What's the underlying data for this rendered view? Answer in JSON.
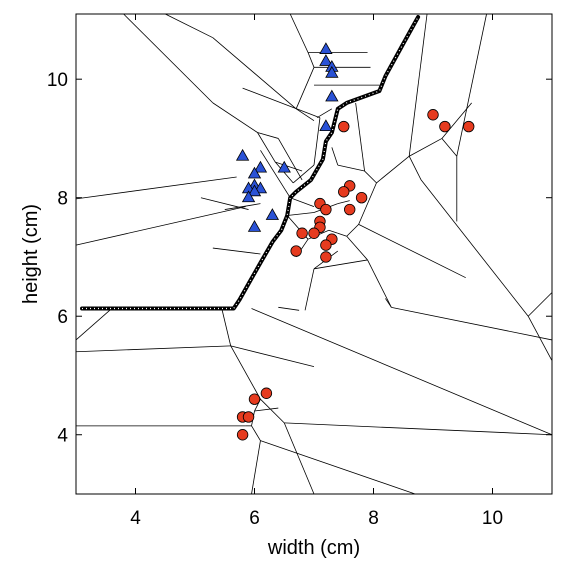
{
  "chart_data": {
    "type": "scatter",
    "xlabel": "width (cm)",
    "ylabel": "height (cm)",
    "xlim": [
      3,
      11
    ],
    "ylim": [
      3,
      11.1
    ],
    "xticks": [
      4,
      6,
      8,
      10
    ],
    "yticks": [
      4,
      6,
      8,
      10
    ],
    "grid": false,
    "series": [
      {
        "marker": "triangle",
        "color": "#2a52d6",
        "points": [
          [
            7.2,
            10.5
          ],
          [
            7.2,
            10.3
          ],
          [
            7.3,
            10.2
          ],
          [
            7.3,
            10.1
          ],
          [
            7.3,
            9.7
          ],
          [
            7.2,
            9.2
          ],
          [
            5.8,
            8.7
          ],
          [
            6.1,
            8.5
          ],
          [
            6.5,
            8.5
          ],
          [
            6.0,
            8.4
          ],
          [
            6.0,
            8.2
          ],
          [
            5.9,
            8.15
          ],
          [
            6.1,
            8.15
          ],
          [
            6.0,
            8.1
          ],
          [
            5.9,
            8.0
          ],
          [
            6.3,
            7.7
          ],
          [
            6.0,
            7.5
          ]
        ]
      },
      {
        "marker": "circle",
        "color": "#e63b1f",
        "points": [
          [
            7.5,
            9.2
          ],
          [
            9.0,
            9.4
          ],
          [
            9.2,
            9.2
          ],
          [
            9.6,
            9.2
          ],
          [
            7.6,
            8.2
          ],
          [
            7.5,
            8.1
          ],
          [
            7.8,
            8.0
          ],
          [
            7.1,
            7.9
          ],
          [
            7.2,
            7.8
          ],
          [
            7.6,
            7.8
          ],
          [
            7.1,
            7.6
          ],
          [
            7.1,
            7.5
          ],
          [
            7.0,
            7.4
          ],
          [
            6.8,
            7.4
          ],
          [
            7.3,
            7.3
          ],
          [
            7.2,
            7.2
          ],
          [
            6.7,
            7.1
          ],
          [
            7.2,
            7.0
          ],
          [
            6.2,
            4.7
          ],
          [
            6.0,
            4.6
          ],
          [
            5.8,
            4.3
          ],
          [
            5.9,
            4.3
          ],
          [
            5.8,
            4.0
          ]
        ]
      }
    ],
    "decision_boundary": [
      [
        3.1,
        6.13
      ],
      [
        5.65,
        6.13
      ],
      [
        5.75,
        6.28
      ],
      [
        5.9,
        6.55
      ],
      [
        6.1,
        6.9
      ],
      [
        6.3,
        7.25
      ],
      [
        6.45,
        7.45
      ],
      [
        6.55,
        7.7
      ],
      [
        6.6,
        8.0
      ],
      [
        6.7,
        8.1
      ],
      [
        6.95,
        8.3
      ],
      [
        7.15,
        8.65
      ],
      [
        7.2,
        8.95
      ],
      [
        7.3,
        9.1
      ],
      [
        7.4,
        9.5
      ],
      [
        7.55,
        9.6
      ],
      [
        8.1,
        9.8
      ],
      [
        8.2,
        10.05
      ],
      [
        8.5,
        10.6
      ],
      [
        8.75,
        11.05
      ]
    ],
    "voronoi_edges": [
      [
        [
          3.0,
          7.98
        ],
        [
          5.7,
          8.35
        ]
      ],
      [
        [
          3.0,
          7.2
        ],
        [
          5.85,
          7.85
        ]
      ],
      [
        [
          3.0,
          4.15
        ],
        [
          5.85,
          4.15
        ]
      ],
      [
        [
          3.0,
          5.6
        ],
        [
          3.6,
          6.13
        ]
      ],
      [
        [
          3.8,
          11.1
        ],
        [
          5.3,
          9.6
        ]
      ],
      [
        [
          5.3,
          9.6
        ],
        [
          6.05,
          9.1
        ]
      ],
      [
        [
          5.1,
          8.0
        ],
        [
          5.9,
          7.8
        ]
      ],
      [
        [
          5.3,
          7.15
        ],
        [
          6.1,
          7.05
        ]
      ],
      [
        [
          5.5,
          7.8
        ],
        [
          6.1,
          7.9
        ]
      ],
      [
        [
          6.05,
          9.1
        ],
        [
          6.35,
          8.6
        ]
      ],
      [
        [
          6.35,
          8.6
        ],
        [
          6.65,
          8.25
        ]
      ],
      [
        [
          6.1,
          8.8
        ],
        [
          6.6,
          8.0
        ]
      ],
      [
        [
          6.35,
          8.6
        ],
        [
          6.8,
          8.45
        ]
      ],
      [
        [
          6.05,
          9.1
        ],
        [
          6.4,
          9.0
        ]
      ],
      [
        [
          6.4,
          9.0
        ],
        [
          6.8,
          8.3
        ]
      ],
      [
        [
          4.5,
          11.1
        ],
        [
          5.3,
          10.7
        ]
      ],
      [
        [
          5.3,
          10.7
        ],
        [
          6.7,
          9.5
        ]
      ],
      [
        [
          6.7,
          9.5
        ],
        [
          7.0,
          9.3
        ]
      ],
      [
        [
          6.6,
          11.1
        ],
        [
          6.9,
          10.45
        ]
      ],
      [
        [
          6.9,
          10.45
        ],
        [
          7.0,
          10.2
        ]
      ],
      [
        [
          7.0,
          10.2
        ],
        [
          6.7,
          9.5
        ]
      ],
      [
        [
          6.9,
          10.45
        ],
        [
          7.9,
          10.45
        ]
      ],
      [
        [
          7.0,
          10.2
        ],
        [
          7.95,
          10.2
        ]
      ],
      [
        [
          7.0,
          9.9
        ],
        [
          8.1,
          9.9
        ]
      ],
      [
        [
          5.8,
          9.85
        ],
        [
          7.1,
          9.35
        ]
      ],
      [
        [
          7.05,
          9.35
        ],
        [
          7.3,
          9.5
        ]
      ],
      [
        [
          7.1,
          9.35
        ],
        [
          7.0,
          8.55
        ]
      ],
      [
        [
          7.0,
          8.55
        ],
        [
          6.65,
          8.25
        ]
      ],
      [
        [
          7.3,
          8.85
        ],
        [
          7.4,
          8.55
        ]
      ],
      [
        [
          7.4,
          8.55
        ],
        [
          7.85,
          8.45
        ]
      ],
      [
        [
          7.85,
          8.45
        ],
        [
          7.7,
          9.6
        ]
      ],
      [
        [
          7.85,
          8.45
        ],
        [
          8.05,
          8.25
        ]
      ],
      [
        [
          8.05,
          8.25
        ],
        [
          8.6,
          8.7
        ]
      ],
      [
        [
          8.6,
          8.7
        ],
        [
          8.9,
          11.1
        ]
      ],
      [
        [
          8.6,
          8.7
        ],
        [
          9.15,
          9.0
        ]
      ],
      [
        [
          9.15,
          9.0
        ],
        [
          9.65,
          9.6
        ]
      ],
      [
        [
          9.15,
          9.0
        ],
        [
          9.4,
          8.7
        ]
      ],
      [
        [
          9.4,
          8.7
        ],
        [
          9.4,
          7.6
        ]
      ],
      [
        [
          9.4,
          8.7
        ],
        [
          9.9,
          11.1
        ]
      ],
      [
        [
          8.6,
          8.7
        ],
        [
          8.8,
          8.3
        ]
      ],
      [
        [
          8.8,
          8.3
        ],
        [
          10.6,
          6.0
        ]
      ],
      [
        [
          10.6,
          6.0
        ],
        [
          11.0,
          5.25
        ]
      ],
      [
        [
          10.6,
          6.0
        ],
        [
          11.0,
          6.4
        ]
      ],
      [
        [
          8.05,
          8.25
        ],
        [
          7.75,
          7.55
        ]
      ],
      [
        [
          7.75,
          7.55
        ],
        [
          7.55,
          7.35
        ]
      ],
      [
        [
          7.55,
          7.35
        ],
        [
          7.4,
          7.4
        ]
      ],
      [
        [
          7.75,
          7.55
        ],
        [
          9.55,
          6.65
        ]
      ],
      [
        [
          7.4,
          7.4
        ],
        [
          7.25,
          7.45
        ]
      ],
      [
        [
          7.55,
          7.35
        ],
        [
          7.9,
          6.95
        ]
      ],
      [
        [
          7.9,
          6.95
        ],
        [
          8.3,
          6.15
        ]
      ],
      [
        [
          8.3,
          6.15
        ],
        [
          11.0,
          5.6
        ]
      ],
      [
        [
          8.3,
          6.15
        ],
        [
          8.2,
          6.3
        ]
      ],
      [
        [
          7.9,
          6.95
        ],
        [
          7.0,
          6.8
        ]
      ],
      [
        [
          7.0,
          6.8
        ],
        [
          6.85,
          6.1
        ]
      ],
      [
        [
          7.0,
          6.8
        ],
        [
          7.4,
          7.1
        ]
      ],
      [
        [
          6.55,
          7.7
        ],
        [
          7.0,
          7.75
        ]
      ],
      [
        [
          7.0,
          7.75
        ],
        [
          7.4,
          7.9
        ]
      ],
      [
        [
          7.4,
          7.9
        ],
        [
          7.6,
          7.95
        ]
      ],
      [
        [
          6.6,
          8.0
        ],
        [
          7.0,
          7.85
        ]
      ],
      [
        [
          6.55,
          7.7
        ],
        [
          6.9,
          7.3
        ]
      ],
      [
        [
          6.9,
          7.3
        ],
        [
          6.7,
          7.0
        ]
      ],
      [
        [
          6.9,
          7.3
        ],
        [
          7.25,
          7.45
        ]
      ],
      [
        [
          3.0,
          5.4
        ],
        [
          5.6,
          5.5
        ]
      ],
      [
        [
          5.6,
          5.5
        ],
        [
          5.45,
          6.13
        ]
      ],
      [
        [
          5.6,
          5.5
        ],
        [
          7.0,
          5.15
        ]
      ],
      [
        [
          5.6,
          5.5
        ],
        [
          6.1,
          4.6
        ]
      ],
      [
        [
          6.1,
          4.6
        ],
        [
          6.5,
          4.2
        ]
      ],
      [
        [
          6.5,
          4.2
        ],
        [
          7.0,
          3.0
        ]
      ],
      [
        [
          6.5,
          4.2
        ],
        [
          11.0,
          4.0
        ]
      ],
      [
        [
          5.95,
          6.13
        ],
        [
          11.0,
          4.0
        ]
      ],
      [
        [
          6.1,
          4.6
        ],
        [
          6.0,
          4.4
        ]
      ],
      [
        [
          6.0,
          4.4
        ],
        [
          5.95,
          4.15
        ]
      ],
      [
        [
          6.0,
          4.4
        ],
        [
          6.4,
          4.45
        ]
      ],
      [
        [
          5.95,
          4.15
        ],
        [
          6.1,
          3.9
        ]
      ],
      [
        [
          6.1,
          3.9
        ],
        [
          5.95,
          3.0
        ]
      ],
      [
        [
          6.1,
          3.9
        ],
        [
          8.7,
          3.0
        ]
      ],
      [
        [
          5.85,
          4.15
        ],
        [
          5.95,
          4.15
        ]
      ],
      [
        [
          6.4,
          6.15
        ],
        [
          6.75,
          6.1
        ]
      ]
    ]
  }
}
